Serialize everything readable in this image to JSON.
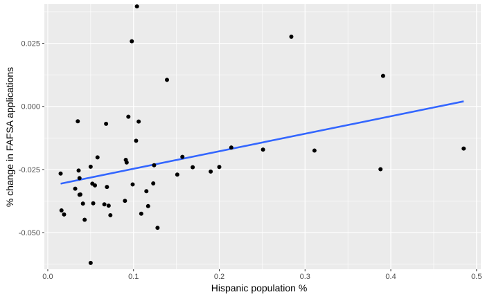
{
  "chart_data": {
    "type": "scatter",
    "title": "",
    "xlabel": "Hispanic population %",
    "ylabel": "% change in FAFSA applications",
    "xlim": [
      -0.004,
      0.505
    ],
    "ylim": [
      -0.0645,
      0.0405
    ],
    "grid": true,
    "x_ticks": [
      0.0,
      0.1,
      0.2,
      0.3,
      0.4,
      0.5
    ],
    "x_tick_labels": [
      "0.0",
      "0.1",
      "0.2",
      "0.3",
      "0.4",
      "0.5"
    ],
    "y_ticks": [
      -0.05,
      -0.025,
      0.0,
      0.025
    ],
    "y_tick_labels": [
      "-0.050",
      "-0.025",
      "0.000",
      "0.025"
    ],
    "colors": {
      "panel": "#ebebeb",
      "grid": "#ffffff",
      "points": "#000000",
      "trend": "#3366ff"
    },
    "points": [
      {
        "x": 0.015,
        "y": -0.0266
      },
      {
        "x": 0.016,
        "y": -0.0412
      },
      {
        "x": 0.019,
        "y": -0.0428
      },
      {
        "x": 0.032,
        "y": -0.0326
      },
      {
        "x": 0.035,
        "y": -0.0059
      },
      {
        "x": 0.036,
        "y": -0.0254
      },
      {
        "x": 0.037,
        "y": -0.0284
      },
      {
        "x": 0.037,
        "y": -0.035
      },
      {
        "x": 0.038,
        "y": -0.0349
      },
      {
        "x": 0.041,
        "y": -0.0385
      },
      {
        "x": 0.043,
        "y": -0.0449
      },
      {
        "x": 0.05,
        "y": -0.0239
      },
      {
        "x": 0.05,
        "y": -0.062
      },
      {
        "x": 0.052,
        "y": -0.0306
      },
      {
        "x": 0.053,
        "y": -0.0384
      },
      {
        "x": 0.055,
        "y": -0.0313
      },
      {
        "x": 0.058,
        "y": -0.0202
      },
      {
        "x": 0.066,
        "y": -0.0388
      },
      {
        "x": 0.068,
        "y": -0.0069
      },
      {
        "x": 0.069,
        "y": -0.0319
      },
      {
        "x": 0.071,
        "y": -0.0393
      },
      {
        "x": 0.073,
        "y": -0.0431
      },
      {
        "x": 0.09,
        "y": -0.0374
      },
      {
        "x": 0.091,
        "y": -0.0212
      },
      {
        "x": 0.092,
        "y": -0.0222
      },
      {
        "x": 0.094,
        "y": -0.0041
      },
      {
        "x": 0.098,
        "y": 0.0258
      },
      {
        "x": 0.099,
        "y": -0.0309
      },
      {
        "x": 0.103,
        "y": -0.0136
      },
      {
        "x": 0.104,
        "y": 0.0396
      },
      {
        "x": 0.106,
        "y": -0.006
      },
      {
        "x": 0.109,
        "y": -0.0425
      },
      {
        "x": 0.115,
        "y": -0.0336
      },
      {
        "x": 0.117,
        "y": -0.0395
      },
      {
        "x": 0.123,
        "y": -0.0305
      },
      {
        "x": 0.124,
        "y": -0.0233
      },
      {
        "x": 0.128,
        "y": -0.0481
      },
      {
        "x": 0.139,
        "y": 0.0105
      },
      {
        "x": 0.151,
        "y": -0.027
      },
      {
        "x": 0.157,
        "y": -0.02
      },
      {
        "x": 0.169,
        "y": -0.0241
      },
      {
        "x": 0.19,
        "y": -0.0258
      },
      {
        "x": 0.2,
        "y": -0.024
      },
      {
        "x": 0.214,
        "y": -0.0163
      },
      {
        "x": 0.251,
        "y": -0.0171
      },
      {
        "x": 0.284,
        "y": 0.0276
      },
      {
        "x": 0.311,
        "y": -0.0175
      },
      {
        "x": 0.388,
        "y": -0.0249
      },
      {
        "x": 0.391,
        "y": 0.0121
      },
      {
        "x": 0.485,
        "y": -0.0167
      }
    ],
    "trend_line": {
      "method": "linear",
      "x": [
        0.015,
        0.485
      ],
      "y": [
        -0.0306,
        0.002
      ]
    }
  }
}
